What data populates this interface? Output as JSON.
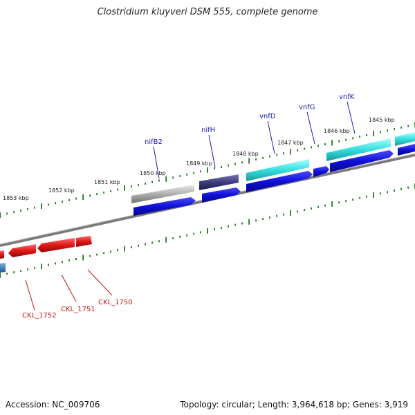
{
  "header": {
    "title": "Clostridium kluyveri DSM 555, complete genome"
  },
  "footer": {
    "accession": "Accession: NC_009706",
    "summary": "Topology: circular; Length: 3,964,618 bp; Genes: 3,919"
  },
  "scale_labels": [
    "1853 kbp",
    "1852 kbp",
    "1851 kbp",
    "1850 kbp",
    "1849 kbp",
    "1848 kbp",
    "1847 kbp",
    "1846 kbp",
    "1845 kbp"
  ],
  "top_genes": [
    "nifB2",
    "nifH",
    "vnfD",
    "vnfG",
    "vnfK"
  ],
  "bottom_genes": [
    "CKL_1752",
    "CKL_1751",
    "CKL_1750"
  ],
  "colors": {
    "backbone": "#7a7a7a",
    "ruler": "#1f7a1f",
    "forward_cds": "#1010d8",
    "reverse_cds": "#e01818",
    "nifB2": "#b0b0b0",
    "nifH": "#3c3c80",
    "vnf": "#33dede",
    "edge_blue": "#3a78b8"
  }
}
